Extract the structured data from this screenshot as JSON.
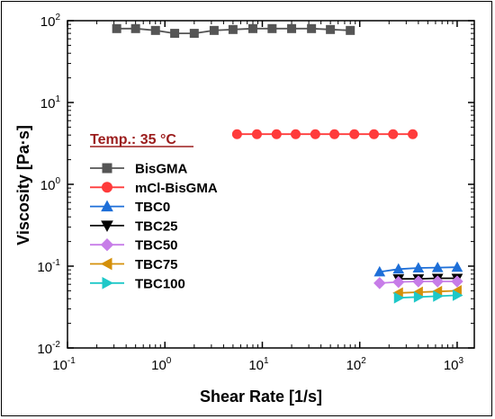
{
  "chart_data": {
    "type": "line",
    "xlabel": "Shear Rate [1/s]",
    "ylabel": "Viscosity [Pa·s]",
    "xscale": "log",
    "yscale": "log",
    "xlim": [
      0.1,
      1500
    ],
    "ylim": [
      0.01,
      100
    ],
    "x_ticks": [
      {
        "base": "10",
        "exp": "-1",
        "value": 0.1
      },
      {
        "base": "10",
        "exp": "0",
        "value": 1
      },
      {
        "base": "10",
        "exp": "1",
        "value": 10
      },
      {
        "base": "10",
        "exp": "2",
        "value": 100
      },
      {
        "base": "10",
        "exp": "3",
        "value": 1000
      }
    ],
    "y_ticks": [
      {
        "base": "10",
        "exp": "-2",
        "value": 0.01
      },
      {
        "base": "10",
        "exp": "-1",
        "value": 0.1
      },
      {
        "base": "10",
        "exp": "0",
        "value": 1
      },
      {
        "base": "10",
        "exp": "1",
        "value": 10
      },
      {
        "base": "10",
        "exp": "2",
        "value": 100
      }
    ],
    "grid": false,
    "legend_position": "left",
    "annotation": "Temp.: 35 °C",
    "series": [
      {
        "name": "BisGMA",
        "color": "#555555",
        "marker": "square",
        "x": [
          0.32,
          0.5,
          0.8,
          1.26,
          2.0,
          3.2,
          5.0,
          8.0,
          12.6,
          20,
          32,
          50,
          80
        ],
        "y": [
          80,
          80,
          76,
          70,
          70,
          76,
          78,
          80,
          80,
          80,
          80,
          78,
          76
        ]
      },
      {
        "name": "mCl-BisGMA",
        "color": "#ff3b3b",
        "marker": "circle",
        "x": [
          5.5,
          8.8,
          14,
          22,
          35,
          55,
          88,
          140,
          220,
          350
        ],
        "y": [
          4.1,
          4.1,
          4.1,
          4.1,
          4.1,
          4.1,
          4.1,
          4.1,
          4.1,
          4.1
        ]
      },
      {
        "name": "TBC0",
        "color": "#1e6fd8",
        "marker": "triangle-up",
        "x": [
          160,
          250,
          400,
          630,
          1000
        ],
        "y": [
          0.085,
          0.092,
          0.095,
          0.096,
          0.097
        ]
      },
      {
        "name": "TBC25",
        "color": "#000000",
        "marker": "triangle-down",
        "x": [
          250,
          400,
          630,
          1000
        ],
        "y": [
          0.07,
          0.07,
          0.071,
          0.071
        ]
      },
      {
        "name": "TBC50",
        "color": "#c77de8",
        "marker": "diamond",
        "x": [
          160,
          250,
          400,
          630,
          1000
        ],
        "y": [
          0.062,
          0.064,
          0.065,
          0.065,
          0.065
        ]
      },
      {
        "name": "TBC75",
        "color": "#d4900a",
        "marker": "triangle-left",
        "x": [
          250,
          400,
          630,
          1000
        ],
        "y": [
          0.047,
          0.048,
          0.049,
          0.05
        ]
      },
      {
        "name": "TBC100",
        "color": "#1ec8c8",
        "marker": "triangle-right",
        "x": [
          250,
          400,
          630,
          1000
        ],
        "y": [
          0.041,
          0.042,
          0.043,
          0.044
        ]
      }
    ]
  }
}
